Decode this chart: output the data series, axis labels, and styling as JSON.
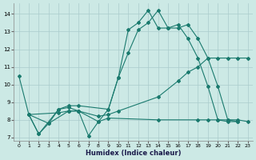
{
  "xlabel": "Humidex (Indice chaleur)",
  "xlim": [
    -0.5,
    23.5
  ],
  "ylim": [
    6.8,
    14.6
  ],
  "yticks": [
    7,
    8,
    9,
    10,
    11,
    12,
    13,
    14
  ],
  "xticks": [
    0,
    1,
    2,
    3,
    4,
    5,
    6,
    7,
    8,
    9,
    10,
    11,
    12,
    13,
    14,
    15,
    16,
    17,
    18,
    19,
    20,
    21,
    22,
    23
  ],
  "background_color": "#cce9e5",
  "grid_color": "#aacccc",
  "line_color": "#1a7a6e",
  "line1_x": [
    0,
    1,
    2,
    4,
    5,
    6,
    9,
    10,
    11,
    12,
    13,
    14,
    15,
    16,
    17,
    18,
    19,
    20,
    21,
    22
  ],
  "line1_y": [
    10.5,
    8.3,
    7.2,
    8.6,
    8.8,
    8.8,
    8.6,
    10.4,
    11.8,
    13.1,
    13.5,
    14.2,
    13.2,
    13.2,
    13.4,
    12.6,
    11.5,
    9.9,
    8.0,
    7.9
  ],
  "line2_x": [
    1,
    2,
    3,
    4,
    5,
    6,
    7,
    8,
    9,
    10,
    11,
    12,
    13,
    14,
    15,
    16,
    17,
    18,
    19,
    20,
    21,
    22
  ],
  "line2_y": [
    8.3,
    7.2,
    7.8,
    8.6,
    8.7,
    8.5,
    7.1,
    7.9,
    8.6,
    10.4,
    13.1,
    13.5,
    14.2,
    13.2,
    13.2,
    13.4,
    12.6,
    11.5,
    9.9,
    8.0,
    7.9,
    7.9
  ],
  "line3_x": [
    1,
    4,
    5,
    6,
    8,
    9,
    10,
    14,
    16,
    17,
    18,
    19,
    20,
    21,
    22,
    23
  ],
  "line3_y": [
    8.3,
    8.4,
    8.5,
    8.5,
    8.2,
    8.3,
    8.5,
    9.3,
    10.2,
    10.7,
    11.0,
    11.5,
    11.5,
    11.5,
    11.5,
    11.5
  ],
  "line4_x": [
    1,
    3,
    5,
    6,
    8,
    9,
    14,
    18,
    19,
    20,
    21,
    22,
    23
  ],
  "line4_y": [
    8.3,
    7.8,
    8.5,
    8.5,
    7.9,
    8.1,
    8.0,
    8.0,
    8.0,
    8.0,
    8.0,
    8.0,
    7.9
  ]
}
